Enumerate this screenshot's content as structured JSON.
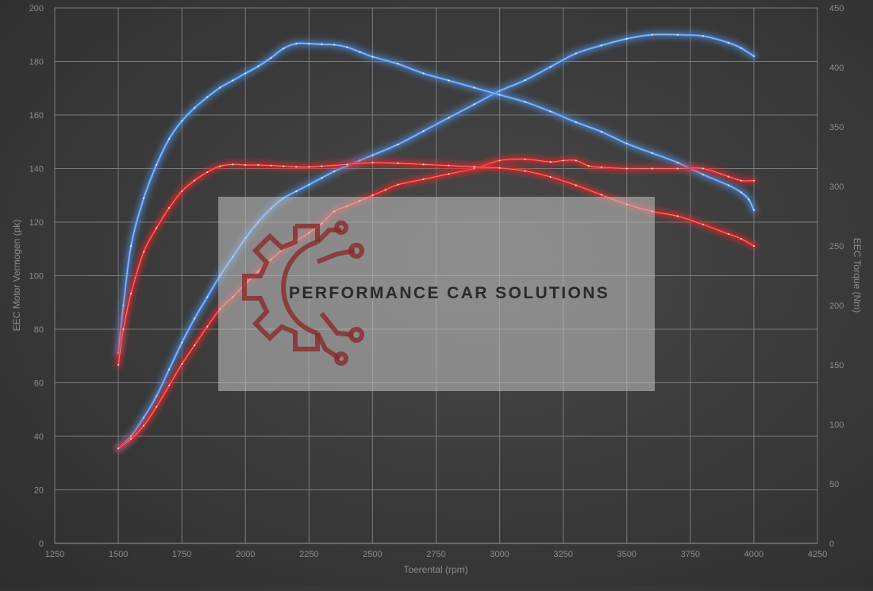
{
  "chart_data": {
    "type": "line",
    "xlabel": "Toerental (rpm)",
    "ylabel_left": "EEC Motor Vermogen (pk)",
    "ylabel_right": "EEC Torque (Nm)",
    "xlim": [
      1250,
      4250
    ],
    "ylim_left": [
      0,
      200
    ],
    "ylim_right": [
      0,
      450
    ],
    "x_ticks": [
      1250,
      1500,
      1750,
      2000,
      2250,
      2500,
      2750,
      3000,
      3250,
      3500,
      3750,
      4000,
      4250
    ],
    "y_ticks_left": [
      0,
      20,
      40,
      60,
      80,
      100,
      120,
      140,
      160,
      180,
      200
    ],
    "y_ticks_right": [
      0,
      50,
      100,
      150,
      200,
      250,
      300,
      350,
      400,
      450
    ],
    "grid": true,
    "legend": "none",
    "colors": {
      "tuned": "#4f96ee",
      "stock": "#ee2424"
    },
    "series": [
      {
        "color": "tuned",
        "axis": "left",
        "x": [
          1500,
          1550,
          1600,
          1650,
          1700,
          1750,
          1800,
          1850,
          1900,
          1950,
          2000,
          2050,
          2100,
          2150,
          2200,
          2250,
          2300,
          2350,
          2400,
          2450,
          2500,
          2600,
          2700,
          2800,
          2900,
          3000,
          3100,
          3200,
          3300,
          3400,
          3500,
          3600,
          3700,
          3800,
          3900,
          3950,
          4000
        ],
        "y": [
          35.5,
          40,
          47,
          55,
          65,
          75,
          84,
          92,
          100,
          107,
          114,
          120,
          125,
          129,
          131.5,
          134,
          136.5,
          139,
          141,
          143,
          145,
          149,
          154,
          159,
          164,
          169,
          173,
          178,
          183,
          186,
          188.5,
          190,
          190,
          189.5,
          187,
          185,
          182
        ]
      },
      {
        "color": "tuned",
        "axis": "right",
        "x": [
          1500,
          1520,
          1550,
          1600,
          1650,
          1700,
          1750,
          1800,
          1850,
          1900,
          1950,
          2000,
          2050,
          2100,
          2150,
          2200,
          2250,
          2300,
          2350,
          2400,
          2450,
          2500,
          2600,
          2700,
          2800,
          2900,
          3000,
          3100,
          3200,
          3300,
          3400,
          3500,
          3600,
          3700,
          3800,
          3900,
          3950,
          3980,
          4000
        ],
        "y": [
          160,
          200,
          250,
          290,
          318,
          340,
          355,
          366,
          375,
          383,
          389,
          395,
          401,
          408,
          416,
          420,
          420,
          419.5,
          419,
          417,
          413,
          409,
          403,
          395,
          389,
          383,
          377,
          371,
          363,
          354,
          346,
          336,
          328,
          320,
          310,
          301,
          295,
          289,
          280
        ]
      },
      {
        "color": "stock",
        "axis": "left",
        "x": [
          1500,
          1550,
          1600,
          1650,
          1700,
          1750,
          1800,
          1850,
          1900,
          1950,
          2000,
          2050,
          2100,
          2150,
          2200,
          2250,
          2300,
          2350,
          2400,
          2450,
          2500,
          2550,
          2600,
          2700,
          2800,
          2900,
          3000,
          3100,
          3200,
          3250,
          3300,
          3350,
          3400,
          3500,
          3600,
          3700,
          3800,
          3900,
          3950,
          4000
        ],
        "y": [
          35.5,
          39,
          44,
          51,
          59,
          67,
          74,
          81,
          87.5,
          92,
          97,
          101.5,
          106,
          110,
          113,
          116,
          119.5,
          124,
          126,
          128,
          130,
          132,
          134,
          136,
          138,
          140,
          143,
          143.5,
          142.5,
          143,
          143,
          141,
          140.5,
          140,
          140,
          140,
          140,
          137,
          135.5,
          135.5
        ]
      },
      {
        "color": "stock",
        "axis": "right",
        "x": [
          1500,
          1520,
          1550,
          1600,
          1650,
          1700,
          1750,
          1800,
          1850,
          1900,
          1950,
          2000,
          2050,
          2100,
          2150,
          2200,
          2250,
          2300,
          2400,
          2500,
          2600,
          2700,
          2800,
          2900,
          3000,
          3100,
          3200,
          3300,
          3400,
          3500,
          3600,
          3700,
          3800,
          3900,
          3950,
          4000
        ],
        "y": [
          150,
          180,
          210,
          245,
          265,
          282,
          296,
          305,
          312,
          317,
          318.5,
          318,
          318,
          317.5,
          317,
          316.5,
          316.5,
          317,
          318.5,
          320,
          319.5,
          318.5,
          317.5,
          316.5,
          315.5,
          313,
          308,
          301,
          293,
          285,
          279,
          275,
          268,
          260,
          256,
          250
        ]
      }
    ]
  },
  "watermark": {
    "text": "PERFORMANCE CAR SOLUTIONS",
    "icon": "gear-circuit-logo"
  }
}
